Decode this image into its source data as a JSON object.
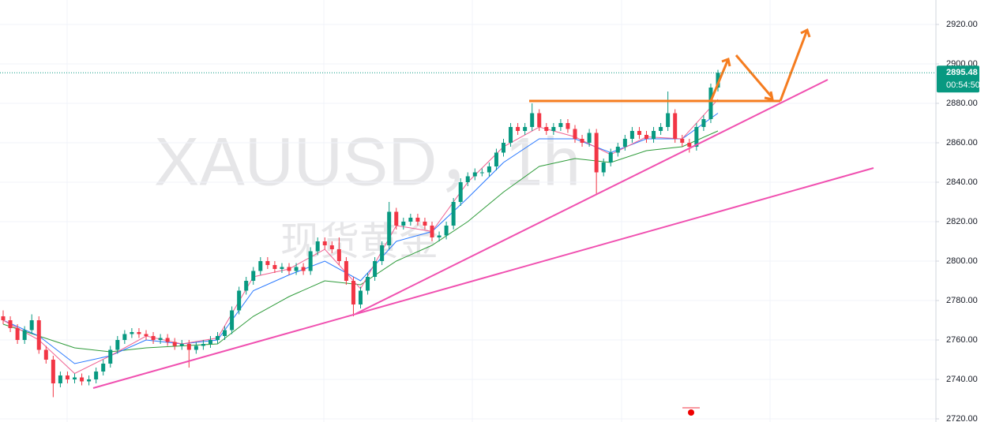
{
  "chart_data": {
    "type": "candlestick",
    "watermark": "XAUUSD，1h",
    "watermark_sub": "现货黄金",
    "ylim": [
      2718.4,
      2932.4
    ],
    "yticks": [
      {
        "value": 2720,
        "label": "2720.00"
      },
      {
        "value": 2740,
        "label": "2740.00"
      },
      {
        "value": 2760,
        "label": "2760.00"
      },
      {
        "value": 2780,
        "label": "2780.00"
      },
      {
        "value": 2800,
        "label": "2800.00"
      },
      {
        "value": 2820,
        "label": "2820.00"
      },
      {
        "value": 2840,
        "label": "2840.00"
      },
      {
        "value": 2860,
        "label": "2860.00"
      },
      {
        "value": 2880,
        "label": "2880.00"
      },
      {
        "value": 2900,
        "label": "2900.00"
      },
      {
        "value": 2920,
        "label": "2920.00"
      }
    ],
    "grid": true,
    "up_color": "#089981",
    "down_color": "#f23645",
    "last_price": 2895.48,
    "countdown": "00:54:50",
    "candles": [
      [
        2772,
        2775,
        2768,
        2770
      ],
      [
        2770,
        2772,
        2764,
        2766
      ],
      [
        2766,
        2768,
        2758,
        2760
      ],
      [
        2760,
        2767,
        2758,
        2765
      ],
      [
        2765,
        2773,
        2763,
        2770
      ],
      [
        2770,
        2772,
        2753,
        2755
      ],
      [
        2755,
        2757,
        2748,
        2750
      ],
      [
        2750,
        2752,
        2731,
        2738
      ],
      [
        2738,
        2744,
        2736,
        2742
      ],
      [
        2742,
        2744,
        2738,
        2740
      ],
      [
        2740,
        2743,
        2738,
        2741
      ],
      [
        2741,
        2743,
        2737,
        2739
      ],
      [
        2739,
        2742,
        2737,
        2740
      ],
      [
        2740,
        2746,
        2738,
        2744
      ],
      [
        2744,
        2750,
        2742,
        2748
      ],
      [
        2748,
        2757,
        2746,
        2755
      ],
      [
        2755,
        2762,
        2753,
        2760
      ],
      [
        2760,
        2765,
        2758,
        2763
      ],
      [
        2763,
        2766,
        2761,
        2764
      ],
      [
        2764,
        2766,
        2761,
        2763
      ],
      [
        2763,
        2765,
        2760,
        2762
      ],
      [
        2762,
        2764,
        2758,
        2760
      ],
      [
        2760,
        2763,
        2758,
        2761
      ],
      [
        2761,
        2763,
        2757,
        2759
      ],
      [
        2759,
        2761,
        2755,
        2757
      ],
      [
        2757,
        2760,
        2755,
        2758
      ],
      [
        2758,
        2760,
        2746,
        2755
      ],
      [
        2755,
        2759,
        2753,
        2757
      ],
      [
        2757,
        2760,
        2755,
        2758
      ],
      [
        2758,
        2762,
        2756,
        2760
      ],
      [
        2760,
        2764,
        2758,
        2762
      ],
      [
        2762,
        2767,
        2760,
        2765
      ],
      [
        2765,
        2777,
        2763,
        2775
      ],
      [
        2775,
        2787,
        2773,
        2785
      ],
      [
        2785,
        2792,
        2783,
        2790
      ],
      [
        2790,
        2797,
        2788,
        2795
      ],
      [
        2795,
        2802,
        2793,
        2800
      ],
      [
        2800,
        2802,
        2796,
        2798
      ],
      [
        2798,
        2800,
        2794,
        2796
      ],
      [
        2796,
        2799,
        2794,
        2797
      ],
      [
        2797,
        2799,
        2793,
        2795
      ],
      [
        2795,
        2799,
        2793,
        2797
      ],
      [
        2797,
        2799,
        2793,
        2795
      ],
      [
        2795,
        2807,
        2793,
        2805
      ],
      [
        2805,
        2812,
        2803,
        2810
      ],
      [
        2810,
        2812,
        2806,
        2808
      ],
      [
        2808,
        2810,
        2804,
        2806
      ],
      [
        2806,
        2812,
        2798,
        2800
      ],
      [
        2800,
        2802,
        2788,
        2790
      ],
      [
        2790,
        2792,
        2772,
        2778
      ],
      [
        2778,
        2787,
        2776,
        2785
      ],
      [
        2785,
        2794,
        2783,
        2792
      ],
      [
        2792,
        2802,
        2790,
        2800
      ],
      [
        2800,
        2810,
        2798,
        2808
      ],
      [
        2808,
        2830,
        2806,
        2825
      ],
      [
        2825,
        2827,
        2816,
        2818
      ],
      [
        2818,
        2822,
        2816,
        2820
      ],
      [
        2820,
        2824,
        2818,
        2822
      ],
      [
        2822,
        2824,
        2818,
        2820
      ],
      [
        2820,
        2822,
        2816,
        2818
      ],
      [
        2818,
        2820,
        2810,
        2812
      ],
      [
        2812,
        2815,
        2810,
        2813
      ],
      [
        2813,
        2820,
        2811,
        2818
      ],
      [
        2818,
        2832,
        2816,
        2830
      ],
      [
        2830,
        2842,
        2828,
        2840
      ],
      [
        2840,
        2845,
        2838,
        2843
      ],
      [
        2843,
        2847,
        2841,
        2845
      ],
      [
        2845,
        2847,
        2843,
        2845
      ],
      [
        2845,
        2850,
        2843,
        2848
      ],
      [
        2848,
        2857,
        2846,
        2855
      ],
      [
        2855,
        2862,
        2853,
        2860
      ],
      [
        2860,
        2870,
        2858,
        2868
      ],
      [
        2868,
        2870,
        2864,
        2866
      ],
      [
        2866,
        2870,
        2864,
        2868
      ],
      [
        2868,
        2880,
        2866,
        2875
      ],
      [
        2875,
        2877,
        2866,
        2868
      ],
      [
        2868,
        2870,
        2864,
        2866
      ],
      [
        2866,
        2870,
        2864,
        2868
      ],
      [
        2868,
        2872,
        2866,
        2870
      ],
      [
        2870,
        2872,
        2865,
        2867
      ],
      [
        2867,
        2869,
        2860,
        2862
      ],
      [
        2862,
        2864,
        2858,
        2860
      ],
      [
        2860,
        2867,
        2858,
        2865
      ],
      [
        2865,
        2867,
        2834,
        2845
      ],
      [
        2845,
        2852,
        2843,
        2850
      ],
      [
        2850,
        2857,
        2848,
        2855
      ],
      [
        2855,
        2860,
        2853,
        2858
      ],
      [
        2858,
        2864,
        2856,
        2862
      ],
      [
        2862,
        2868,
        2860,
        2866
      ],
      [
        2866,
        2868,
        2862,
        2864
      ],
      [
        2864,
        2866,
        2860,
        2862
      ],
      [
        2862,
        2868,
        2860,
        2866
      ],
      [
        2866,
        2870,
        2864,
        2868
      ],
      [
        2868,
        2886,
        2866,
        2875
      ],
      [
        2875,
        2877,
        2860,
        2862
      ],
      [
        2862,
        2864,
        2858,
        2860
      ],
      [
        2860,
        2862,
        2855,
        2858
      ],
      [
        2858,
        2870,
        2856,
        2868
      ],
      [
        2868,
        2874,
        2866,
        2872
      ],
      [
        2872,
        2890,
        2870,
        2888
      ],
      [
        2888,
        2897,
        2886,
        2895.48
      ]
    ],
    "ma_x": [
      0,
      5,
      10,
      15,
      20,
      25,
      30,
      35,
      40,
      45,
      50,
      55,
      60,
      65,
      70,
      75,
      80,
      85,
      90,
      95,
      100
    ],
    "ma": [
      {
        "color": "#2e9b3a",
        "values": [
          2768,
          2762,
          2756,
          2754,
          2756,
          2757,
          2758,
          2772,
          2782,
          2790,
          2788,
          2800,
          2808,
          2820,
          2835,
          2848,
          2852,
          2850,
          2856,
          2858,
          2866
        ]
      },
      {
        "color": "#2979ff",
        "values": [
          2770,
          2762,
          2748,
          2752,
          2760,
          2758,
          2760,
          2785,
          2793,
          2800,
          2790,
          2810,
          2815,
          2832,
          2850,
          2862,
          2862,
          2855,
          2862,
          2862,
          2875
        ]
      },
      {
        "color": "#f06292",
        "values": [
          2770,
          2760,
          2743,
          2752,
          2762,
          2758,
          2761,
          2792,
          2796,
          2806,
          2786,
          2818,
          2815,
          2840,
          2858,
          2868,
          2863,
          2854,
          2863,
          2862,
          2882
        ]
      }
    ]
  }
}
